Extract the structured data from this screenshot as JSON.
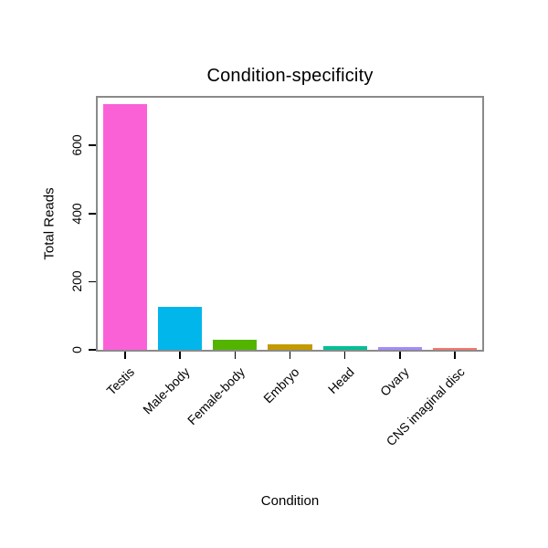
{
  "chart_data": {
    "type": "bar",
    "title": "Condition-specificity",
    "xlabel": "Condition",
    "ylabel": "Total Reads",
    "categories": [
      "Testis",
      "Male-body",
      "Female-body",
      "Embryo",
      "Head",
      "Ovary",
      "CNS imaginal disc"
    ],
    "values": [
      720,
      125,
      30,
      15,
      10,
      8,
      5
    ],
    "bar_colors": [
      "#FB61D7",
      "#00B6EB",
      "#53B400",
      "#C49A00",
      "#00C094",
      "#A58AFF",
      "#F8766D"
    ],
    "yticks": [
      0,
      200,
      400,
      600
    ],
    "ylim": [
      0,
      740
    ],
    "grid": false,
    "legend": false,
    "frame_color": "#8A8A8A",
    "background_color": "#FFFFFF"
  }
}
